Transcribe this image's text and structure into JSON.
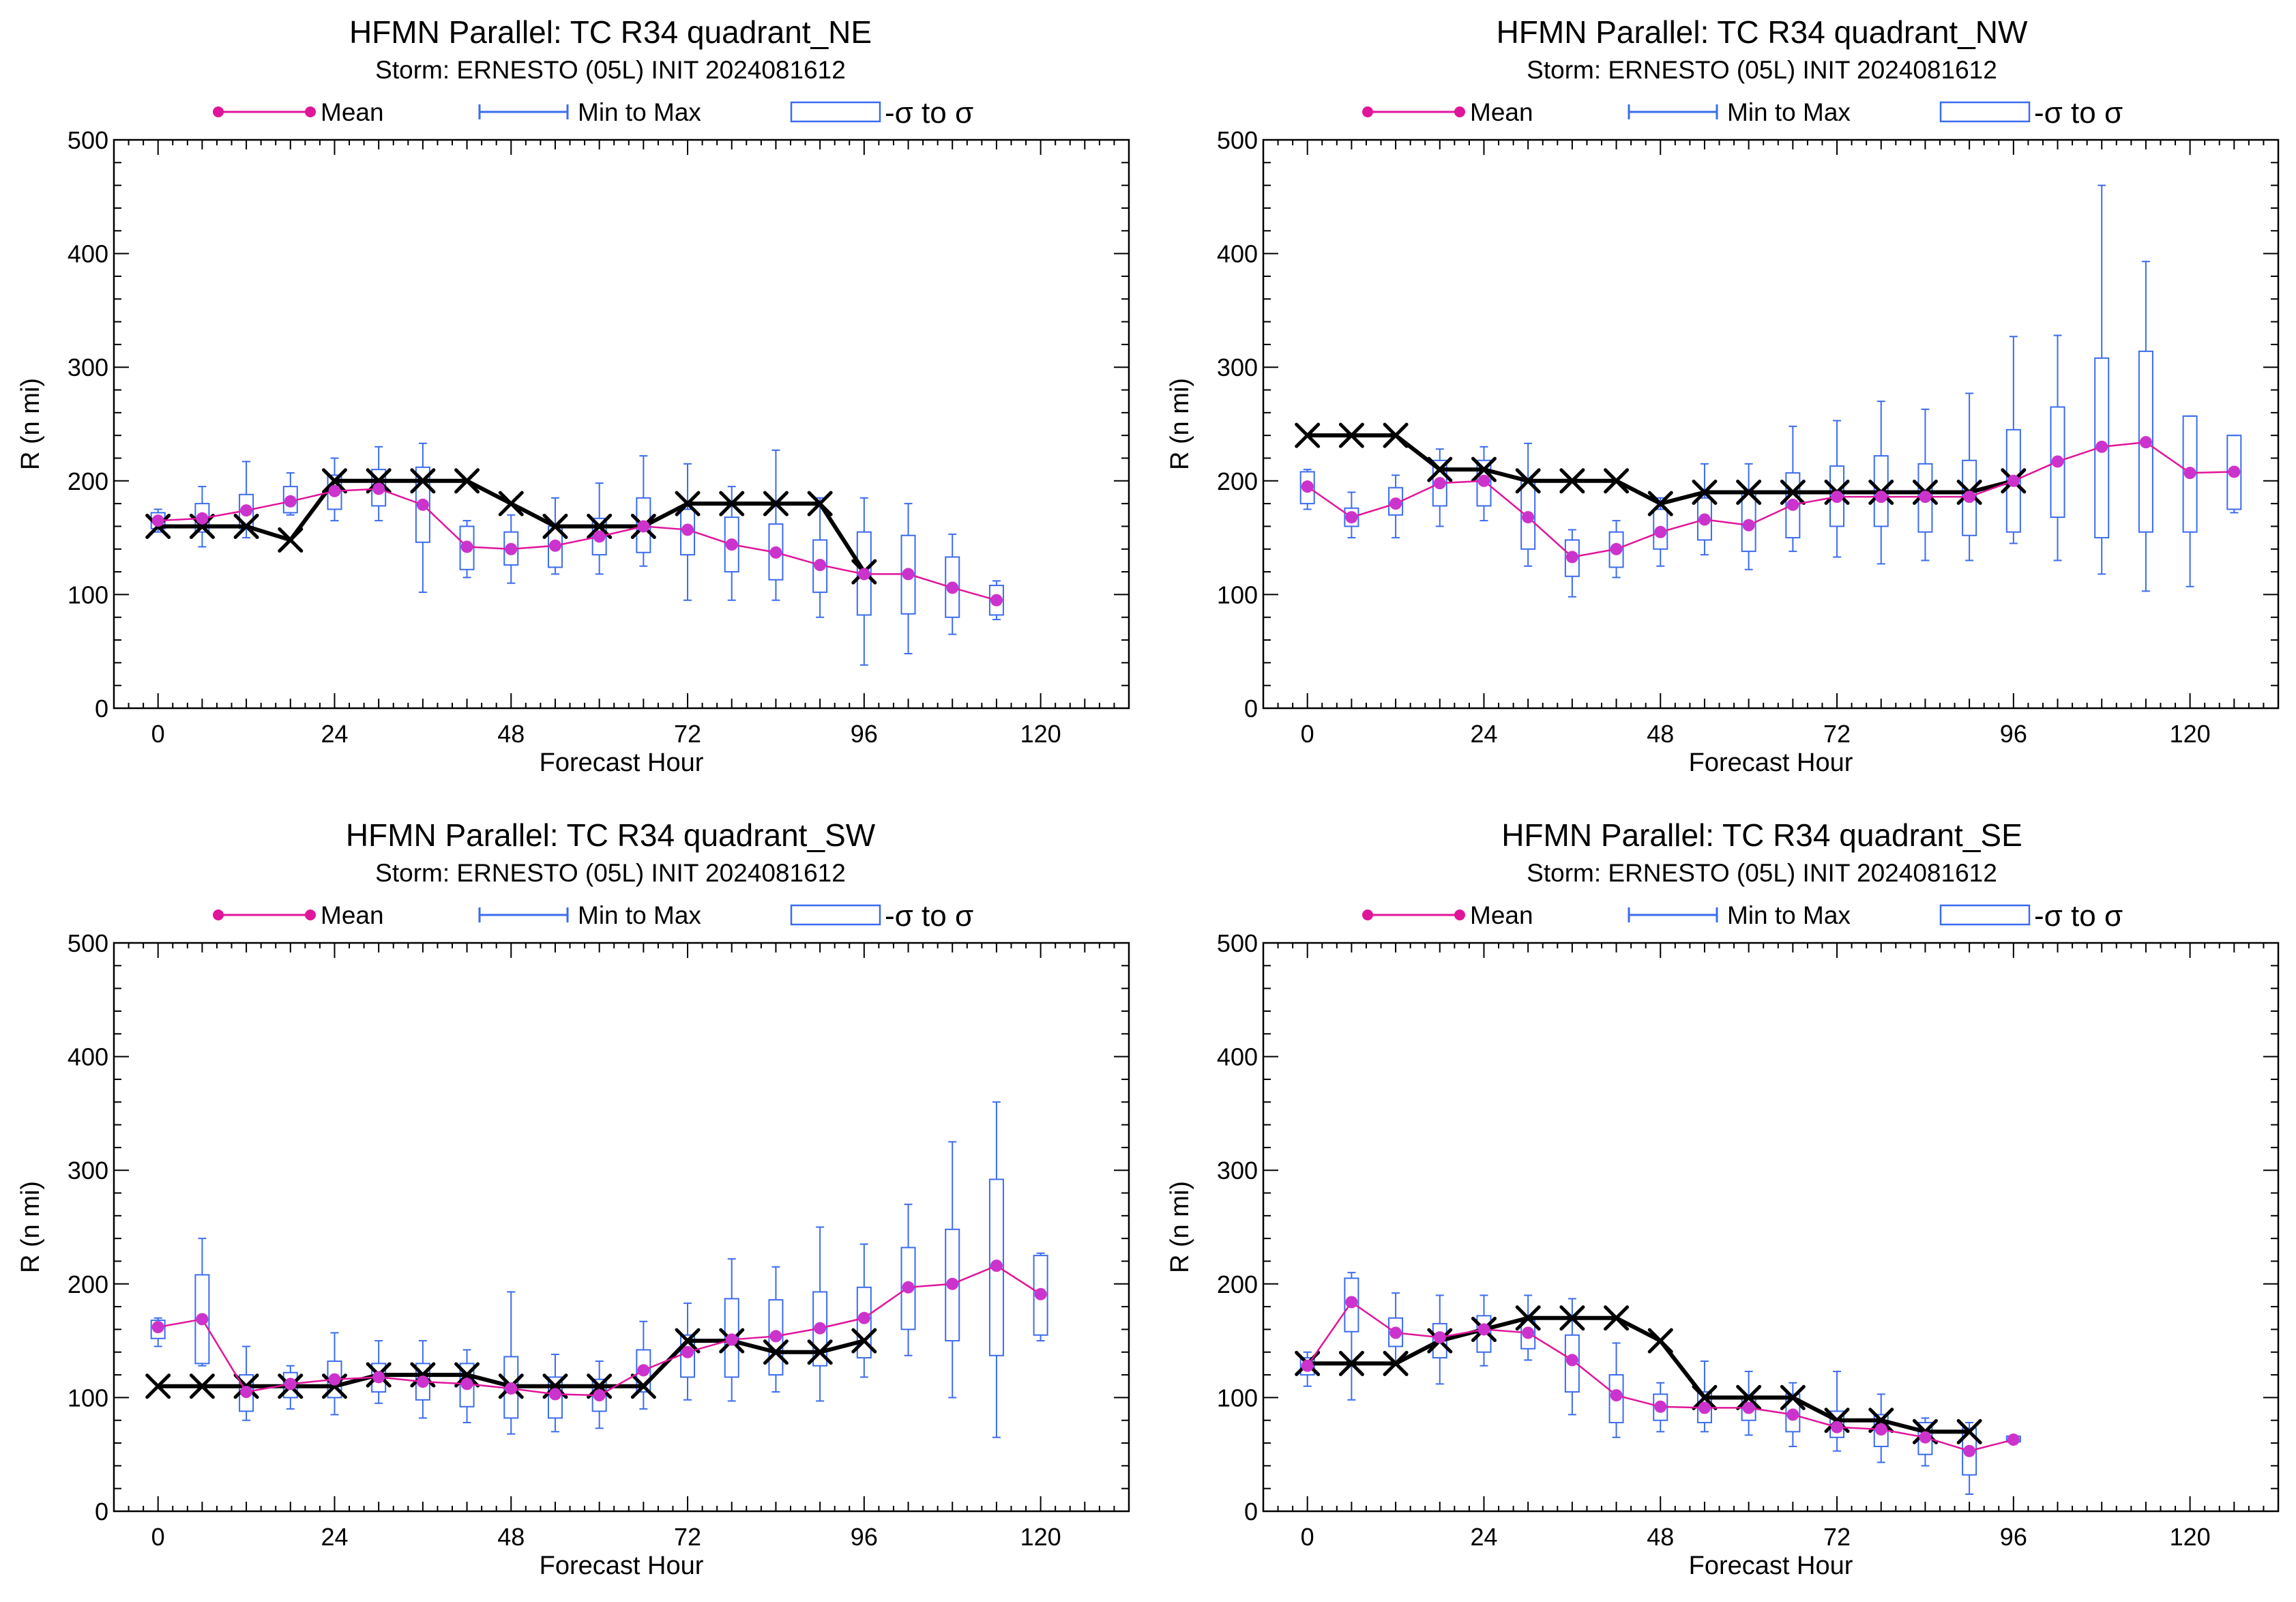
{
  "figure": {
    "legend_labels": {
      "mean": "Mean",
      "minmax": "Min to Max",
      "sigma": "-σ to σ"
    },
    "colors": {
      "mean": "#e0159a",
      "mean_marker": "#cc33cc",
      "box": "#3b6cf0",
      "observed": "#000000"
    }
  },
  "chart_data": [
    {
      "type": "line",
      "title": "HFMN Parallel: TC  R34 quadrant_NE",
      "subtitle": "Storm: ERNESTO (05L) INIT 2024081612",
      "xlabel": "Forecast Hour",
      "ylabel": "R (n mi)",
      "xlim": [
        -6,
        132
      ],
      "ylim": [
        0,
        500
      ],
      "xticks": [
        0,
        24,
        48,
        72,
        96,
        120
      ],
      "yticks": [
        0,
        100,
        200,
        300,
        400,
        500
      ],
      "legend": "top",
      "observed": {
        "x": [
          0,
          6,
          12,
          18,
          24,
          30,
          36,
          42,
          48,
          54,
          60,
          66,
          72,
          78,
          84,
          90,
          96
        ],
        "y": [
          160,
          160,
          160,
          148,
          200,
          200,
          200,
          200,
          180,
          160,
          160,
          160,
          180,
          180,
          180,
          180,
          120
        ]
      },
      "mean": {
        "x": [
          0,
          6,
          12,
          18,
          24,
          30,
          36,
          42,
          48,
          54,
          60,
          66,
          72,
          78,
          84,
          90,
          96,
          102,
          108,
          114
        ],
        "y": [
          165,
          167,
          174,
          182,
          191,
          193,
          179,
          142,
          140,
          143,
          151,
          160,
          157,
          144,
          137,
          126,
          118,
          118,
          106,
          95
        ]
      },
      "boxes": [
        {
          "x": 0,
          "min": 155,
          "q1": 158,
          "q3": 172,
          "max": 175
        },
        {
          "x": 6,
          "min": 142,
          "q1": 155,
          "q3": 180,
          "max": 195
        },
        {
          "x": 12,
          "min": 150,
          "q1": 158,
          "q3": 188,
          "max": 217
        },
        {
          "x": 18,
          "min": 170,
          "q1": 172,
          "q3": 195,
          "max": 207
        },
        {
          "x": 24,
          "min": 165,
          "q1": 175,
          "q3": 205,
          "max": 220
        },
        {
          "x": 30,
          "min": 165,
          "q1": 178,
          "q3": 210,
          "max": 230
        },
        {
          "x": 36,
          "min": 102,
          "q1": 146,
          "q3": 212,
          "max": 233
        },
        {
          "x": 42,
          "min": 115,
          "q1": 122,
          "q3": 160,
          "max": 165
        },
        {
          "x": 48,
          "min": 110,
          "q1": 126,
          "q3": 155,
          "max": 170
        },
        {
          "x": 54,
          "min": 118,
          "q1": 124,
          "q3": 160,
          "max": 185
        },
        {
          "x": 60,
          "min": 118,
          "q1": 135,
          "q3": 167,
          "max": 198
        },
        {
          "x": 66,
          "min": 125,
          "q1": 137,
          "q3": 185,
          "max": 222
        },
        {
          "x": 72,
          "min": 95,
          "q1": 135,
          "q3": 175,
          "max": 215
        },
        {
          "x": 78,
          "min": 95,
          "q1": 120,
          "q3": 168,
          "max": 195
        },
        {
          "x": 84,
          "min": 95,
          "q1": 113,
          "q3": 162,
          "max": 227
        },
        {
          "x": 90,
          "min": 80,
          "q1": 102,
          "q3": 148,
          "max": 185
        },
        {
          "x": 96,
          "min": 38,
          "q1": 82,
          "q3": 155,
          "max": 185
        },
        {
          "x": 102,
          "min": 48,
          "q1": 83,
          "q3": 152,
          "max": 180
        },
        {
          "x": 108,
          "min": 65,
          "q1": 80,
          "q3": 133,
          "max": 153
        },
        {
          "x": 114,
          "min": 78,
          "q1": 82,
          "q3": 108,
          "max": 112
        }
      ]
    },
    {
      "type": "line",
      "title": "HFMN Parallel: TC  R34 quadrant_NW",
      "subtitle": "Storm: ERNESTO (05L) INIT 2024081612",
      "xlabel": "Forecast Hour",
      "ylabel": "R (n mi)",
      "xlim": [
        -6,
        132
      ],
      "ylim": [
        0,
        500
      ],
      "xticks": [
        0,
        24,
        48,
        72,
        96,
        120
      ],
      "yticks": [
        0,
        100,
        200,
        300,
        400,
        500
      ],
      "legend": "top",
      "observed": {
        "x": [
          0,
          6,
          12,
          18,
          24,
          30,
          36,
          42,
          48,
          54,
          60,
          66,
          72,
          78,
          84,
          90,
          96
        ],
        "y": [
          240,
          240,
          240,
          210,
          210,
          200,
          200,
          200,
          180,
          190,
          190,
          190,
          190,
          190,
          190,
          190,
          200
        ]
      },
      "mean": {
        "x": [
          0,
          6,
          12,
          18,
          24,
          30,
          36,
          42,
          48,
          54,
          60,
          66,
          72,
          78,
          84,
          90,
          96,
          102,
          108,
          114,
          120,
          126
        ],
        "y": [
          195,
          168,
          180,
          198,
          200,
          168,
          133,
          140,
          155,
          166,
          161,
          179,
          186,
          186,
          186,
          186,
          200,
          217,
          230,
          234,
          207,
          208
        ]
      },
      "boxes": [
        {
          "x": 0,
          "min": 175,
          "q1": 180,
          "q3": 208,
          "max": 210
        },
        {
          "x": 6,
          "min": 150,
          "q1": 160,
          "q3": 176,
          "max": 190
        },
        {
          "x": 12,
          "min": 150,
          "q1": 170,
          "q3": 194,
          "max": 205
        },
        {
          "x": 18,
          "min": 160,
          "q1": 178,
          "q3": 218,
          "max": 228
        },
        {
          "x": 24,
          "min": 165,
          "q1": 178,
          "q3": 218,
          "max": 230
        },
        {
          "x": 30,
          "min": 125,
          "q1": 140,
          "q3": 200,
          "max": 233
        },
        {
          "x": 36,
          "min": 98,
          "q1": 116,
          "q3": 148,
          "max": 157
        },
        {
          "x": 42,
          "min": 115,
          "q1": 124,
          "q3": 155,
          "max": 165
        },
        {
          "x": 48,
          "min": 125,
          "q1": 140,
          "q3": 175,
          "max": 185
        },
        {
          "x": 54,
          "min": 135,
          "q1": 148,
          "q3": 185,
          "max": 215
        },
        {
          "x": 60,
          "min": 122,
          "q1": 138,
          "q3": 190,
          "max": 215
        },
        {
          "x": 66,
          "min": 138,
          "q1": 150,
          "q3": 207,
          "max": 248
        },
        {
          "x": 72,
          "min": 133,
          "q1": 160,
          "q3": 213,
          "max": 253
        },
        {
          "x": 78,
          "min": 127,
          "q1": 160,
          "q3": 222,
          "max": 270
        },
        {
          "x": 84,
          "min": 130,
          "q1": 155,
          "q3": 215,
          "max": 263
        },
        {
          "x": 90,
          "min": 130,
          "q1": 152,
          "q3": 218,
          "max": 277
        },
        {
          "x": 96,
          "min": 145,
          "q1": 155,
          "q3": 245,
          "max": 327
        },
        {
          "x": 102,
          "min": 130,
          "q1": 168,
          "q3": 265,
          "max": 328
        },
        {
          "x": 108,
          "min": 118,
          "q1": 150,
          "q3": 308,
          "max": 460
        },
        {
          "x": 114,
          "min": 103,
          "q1": 155,
          "q3": 314,
          "max": 393
        },
        {
          "x": 120,
          "min": 107,
          "q1": 155,
          "q3": 257,
          "max": 257
        },
        {
          "x": 126,
          "min": 172,
          "q1": 175,
          "q3": 240,
          "max": 240
        }
      ]
    },
    {
      "type": "line",
      "title": "HFMN Parallel: TC  R34 quadrant_SW",
      "subtitle": "Storm: ERNESTO (05L) INIT 2024081612",
      "xlabel": "Forecast Hour",
      "ylabel": "R (n mi)",
      "xlim": [
        -6,
        132
      ],
      "ylim": [
        0,
        500
      ],
      "xticks": [
        0,
        24,
        48,
        72,
        96,
        120
      ],
      "yticks": [
        0,
        100,
        200,
        300,
        400,
        500
      ],
      "legend": "top",
      "observed": {
        "x": [
          0,
          6,
          12,
          18,
          24,
          30,
          36,
          42,
          48,
          54,
          60,
          66,
          72,
          78,
          84,
          90,
          96
        ],
        "y": [
          110,
          110,
          110,
          110,
          110,
          120,
          120,
          120,
          110,
          110,
          110,
          110,
          150,
          150,
          140,
          140,
          150
        ]
      },
      "mean": {
        "x": [
          0,
          6,
          12,
          18,
          24,
          30,
          36,
          42,
          48,
          54,
          60,
          66,
          72,
          78,
          84,
          90,
          96,
          102,
          108,
          114,
          120
        ],
        "y": [
          162,
          169,
          105,
          112,
          116,
          118,
          114,
          112,
          108,
          103,
          102,
          124,
          140,
          151,
          154,
          161,
          170,
          197,
          200,
          216,
          191
        ]
      },
      "boxes": [
        {
          "x": 0,
          "min": 145,
          "q1": 152,
          "q3": 168,
          "max": 170
        },
        {
          "x": 6,
          "min": 128,
          "q1": 130,
          "q3": 208,
          "max": 240
        },
        {
          "x": 12,
          "min": 80,
          "q1": 88,
          "q3": 120,
          "max": 145
        },
        {
          "x": 18,
          "min": 90,
          "q1": 100,
          "q3": 122,
          "max": 128
        },
        {
          "x": 24,
          "min": 85,
          "q1": 100,
          "q3": 132,
          "max": 157
        },
        {
          "x": 30,
          "min": 95,
          "q1": 105,
          "q3": 130,
          "max": 150
        },
        {
          "x": 36,
          "min": 82,
          "q1": 98,
          "q3": 130,
          "max": 150
        },
        {
          "x": 42,
          "min": 78,
          "q1": 92,
          "q3": 130,
          "max": 142
        },
        {
          "x": 48,
          "min": 68,
          "q1": 82,
          "q3": 136,
          "max": 193
        },
        {
          "x": 54,
          "min": 70,
          "q1": 82,
          "q3": 118,
          "max": 138
        },
        {
          "x": 60,
          "min": 73,
          "q1": 88,
          "q3": 116,
          "max": 132
        },
        {
          "x": 66,
          "min": 90,
          "q1": 105,
          "q3": 142,
          "max": 167
        },
        {
          "x": 72,
          "min": 98,
          "q1": 118,
          "q3": 155,
          "max": 183
        },
        {
          "x": 78,
          "min": 97,
          "q1": 118,
          "q3": 187,
          "max": 222
        },
        {
          "x": 84,
          "min": 105,
          "q1": 120,
          "q3": 186,
          "max": 215
        },
        {
          "x": 90,
          "min": 97,
          "q1": 128,
          "q3": 193,
          "max": 250
        },
        {
          "x": 96,
          "min": 118,
          "q1": 135,
          "q3": 197,
          "max": 235
        },
        {
          "x": 102,
          "min": 137,
          "q1": 160,
          "q3": 232,
          "max": 270
        },
        {
          "x": 108,
          "min": 100,
          "q1": 150,
          "q3": 248,
          "max": 325
        },
        {
          "x": 114,
          "min": 65,
          "q1": 137,
          "q3": 292,
          "max": 360
        },
        {
          "x": 120,
          "min": 150,
          "q1": 155,
          "q3": 225,
          "max": 227
        }
      ]
    },
    {
      "type": "line",
      "title": "HFMN Parallel: TC  R34 quadrant_SE",
      "subtitle": "Storm: ERNESTO (05L) INIT 2024081612",
      "xlabel": "Forecast Hour",
      "ylabel": "R (n mi)",
      "xlim": [
        -6,
        132
      ],
      "ylim": [
        0,
        500
      ],
      "xticks": [
        0,
        24,
        48,
        72,
        96,
        120
      ],
      "yticks": [
        0,
        100,
        200,
        300,
        400,
        500
      ],
      "legend": "top",
      "observed": {
        "x": [
          0,
          6,
          12,
          18,
          24,
          30,
          36,
          42,
          48,
          54,
          60,
          66,
          72,
          78,
          84,
          90
        ],
        "y": [
          130,
          130,
          130,
          150,
          160,
          170,
          170,
          170,
          150,
          100,
          100,
          100,
          80,
          80,
          70,
          70
        ]
      },
      "mean": {
        "x": [
          0,
          6,
          12,
          18,
          24,
          30,
          36,
          42,
          48,
          54,
          60,
          66,
          72,
          78,
          84,
          90,
          96
        ],
        "y": [
          128,
          184,
          157,
          153,
          160,
          157,
          133,
          102,
          92,
          91,
          91,
          85,
          74,
          72,
          65,
          53,
          63
        ]
      },
      "boxes": [
        {
          "x": 0,
          "min": 110,
          "q1": 120,
          "q3": 135,
          "max": 140
        },
        {
          "x": 6,
          "min": 98,
          "q1": 158,
          "q3": 205,
          "max": 210
        },
        {
          "x": 12,
          "min": 130,
          "q1": 145,
          "q3": 170,
          "max": 192
        },
        {
          "x": 18,
          "min": 112,
          "q1": 135,
          "q3": 165,
          "max": 190
        },
        {
          "x": 24,
          "min": 128,
          "q1": 140,
          "q3": 172,
          "max": 190
        },
        {
          "x": 30,
          "min": 133,
          "q1": 143,
          "q3": 168,
          "max": 190
        },
        {
          "x": 36,
          "min": 85,
          "q1": 105,
          "q3": 155,
          "max": 187
        },
        {
          "x": 42,
          "min": 65,
          "q1": 78,
          "q3": 120,
          "max": 148
        },
        {
          "x": 48,
          "min": 70,
          "q1": 80,
          "q3": 103,
          "max": 113
        },
        {
          "x": 54,
          "min": 70,
          "q1": 78,
          "q3": 105,
          "max": 132
        },
        {
          "x": 60,
          "min": 67,
          "q1": 80,
          "q3": 100,
          "max": 123
        },
        {
          "x": 66,
          "min": 57,
          "q1": 70,
          "q3": 103,
          "max": 113
        },
        {
          "x": 72,
          "min": 53,
          "q1": 65,
          "q3": 88,
          "max": 123
        },
        {
          "x": 78,
          "min": 43,
          "q1": 57,
          "q3": 85,
          "max": 103
        },
        {
          "x": 84,
          "min": 40,
          "q1": 50,
          "q3": 78,
          "max": 82
        },
        {
          "x": 90,
          "min": 15,
          "q1": 32,
          "q3": 73,
          "max": 78
        },
        {
          "x": 96,
          "min": 60,
          "q1": 61,
          "q3": 66,
          "max": 66
        }
      ]
    }
  ]
}
